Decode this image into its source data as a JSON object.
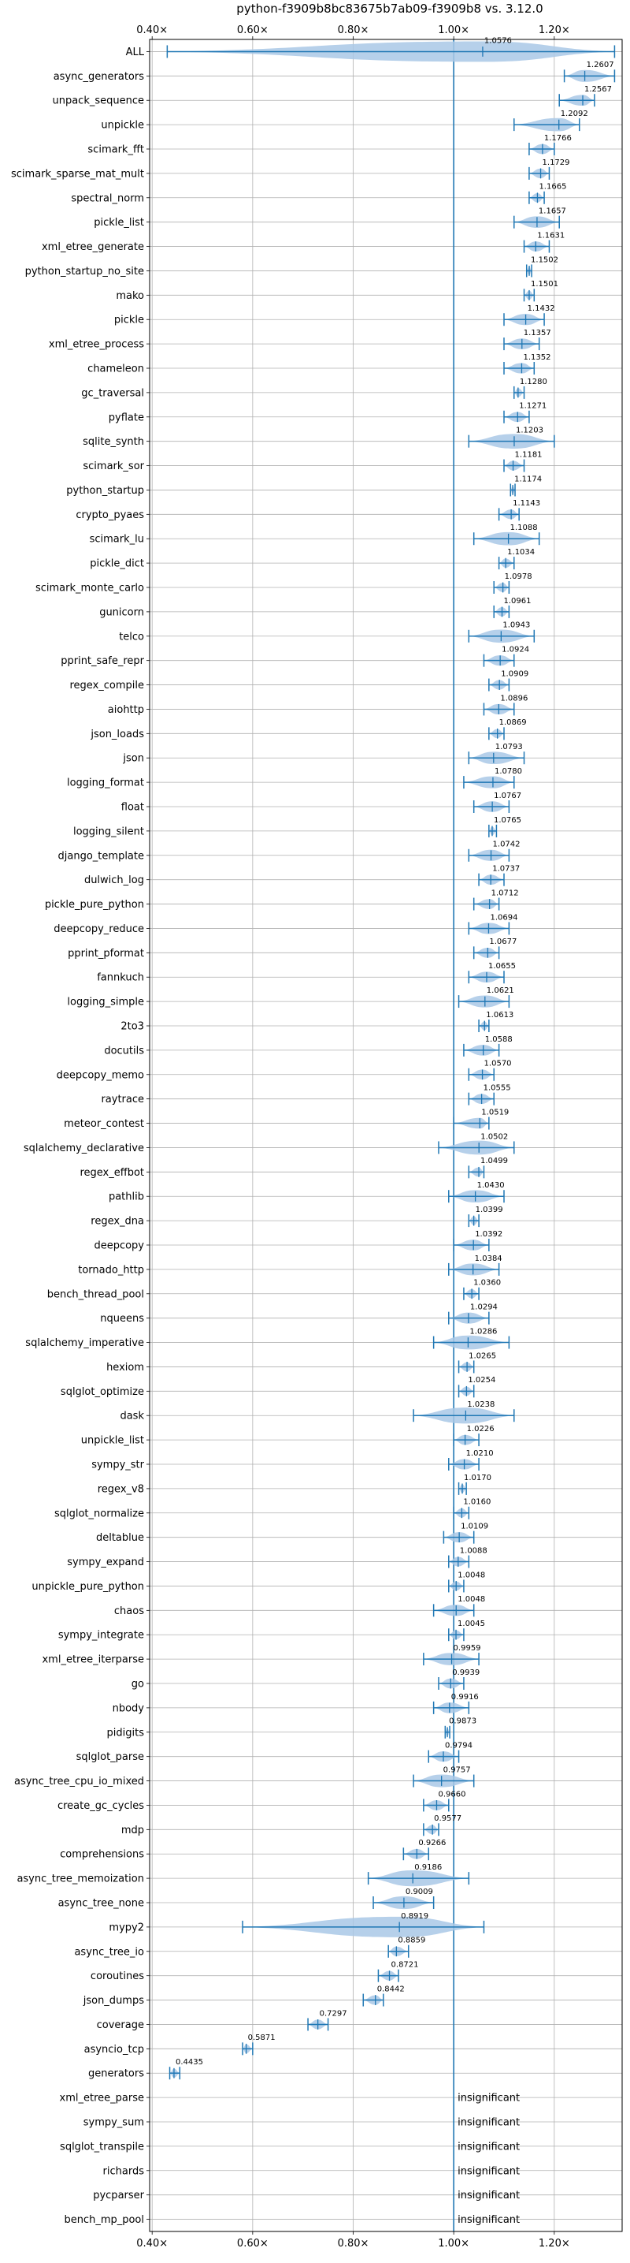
{
  "chart_data": {
    "type": "violin",
    "title": "python-f3909b8bc83675b7ab09-f3909b8 vs. 3.12.0",
    "xlabel": "",
    "ylabel": "",
    "xlim": [
      0.395,
      1.335
    ],
    "x_ticks": [
      0.4,
      0.6,
      0.8,
      1.0,
      1.2
    ],
    "x_tick_labels": [
      "0.40×",
      "0.60×",
      "0.80×",
      "1.00×",
      "1.20×"
    ],
    "reference_x": 1.0,
    "grid": true,
    "insignificant_label": "insignificant",
    "colors": {
      "violin": "#a9c8e6",
      "line": "#1f77b4"
    },
    "benchmarks": [
      {
        "name": "ALL",
        "value": 1.0576,
        "label": "1.0576",
        "min": 0.43,
        "max": 1.32
      },
      {
        "name": "async_generators",
        "value": 1.2607,
        "label": "1.2607",
        "min": 1.22,
        "max": 1.32
      },
      {
        "name": "unpack_sequence",
        "value": 1.2567,
        "label": "1.2567",
        "min": 1.21,
        "max": 1.28
      },
      {
        "name": "unpickle",
        "value": 1.2092,
        "label": "1.2092",
        "min": 1.12,
        "max": 1.25
      },
      {
        "name": "scimark_fft",
        "value": 1.1766,
        "label": "1.1766",
        "min": 1.15,
        "max": 1.2
      },
      {
        "name": "scimark_sparse_mat_mult",
        "value": 1.1729,
        "label": "1.1729",
        "min": 1.15,
        "max": 1.19
      },
      {
        "name": "spectral_norm",
        "value": 1.1665,
        "label": "1.1665",
        "min": 1.15,
        "max": 1.18
      },
      {
        "name": "pickle_list",
        "value": 1.1657,
        "label": "1.1657",
        "min": 1.12,
        "max": 1.21
      },
      {
        "name": "xml_etree_generate",
        "value": 1.1631,
        "label": "1.1631",
        "min": 1.14,
        "max": 1.19
      },
      {
        "name": "python_startup_no_site",
        "value": 1.1502,
        "label": "1.1502",
        "min": 1.145,
        "max": 1.155
      },
      {
        "name": "mako",
        "value": 1.1501,
        "label": "1.1501",
        "min": 1.14,
        "max": 1.16
      },
      {
        "name": "pickle",
        "value": 1.1432,
        "label": "1.1432",
        "min": 1.1,
        "max": 1.18
      },
      {
        "name": "xml_etree_process",
        "value": 1.1357,
        "label": "1.1357",
        "min": 1.1,
        "max": 1.17
      },
      {
        "name": "chameleon",
        "value": 1.1352,
        "label": "1.1352",
        "min": 1.1,
        "max": 1.16
      },
      {
        "name": "gc_traversal",
        "value": 1.128,
        "label": "1.1280",
        "min": 1.12,
        "max": 1.14
      },
      {
        "name": "pyflate",
        "value": 1.1271,
        "label": "1.1271",
        "min": 1.1,
        "max": 1.15
      },
      {
        "name": "sqlite_synth",
        "value": 1.1203,
        "label": "1.1203",
        "min": 1.03,
        "max": 1.2
      },
      {
        "name": "scimark_sor",
        "value": 1.1181,
        "label": "1.1181",
        "min": 1.1,
        "max": 1.14
      },
      {
        "name": "python_startup",
        "value": 1.1174,
        "label": "1.1174",
        "min": 1.113,
        "max": 1.122
      },
      {
        "name": "crypto_pyaes",
        "value": 1.1143,
        "label": "1.1143",
        "min": 1.09,
        "max": 1.13
      },
      {
        "name": "scimark_lu",
        "value": 1.1088,
        "label": "1.1088",
        "min": 1.04,
        "max": 1.17
      },
      {
        "name": "pickle_dict",
        "value": 1.1034,
        "label": "1.1034",
        "min": 1.09,
        "max": 1.12
      },
      {
        "name": "scimark_monte_carlo",
        "value": 1.0978,
        "label": "1.0978",
        "min": 1.08,
        "max": 1.11
      },
      {
        "name": "gunicorn",
        "value": 1.0961,
        "label": "1.0961",
        "min": 1.08,
        "max": 1.11
      },
      {
        "name": "telco",
        "value": 1.0943,
        "label": "1.0943",
        "min": 1.03,
        "max": 1.16
      },
      {
        "name": "pprint_safe_repr",
        "value": 1.0924,
        "label": "1.0924",
        "min": 1.06,
        "max": 1.12
      },
      {
        "name": "regex_compile",
        "value": 1.0909,
        "label": "1.0909",
        "min": 1.07,
        "max": 1.11
      },
      {
        "name": "aiohttp",
        "value": 1.0896,
        "label": "1.0896",
        "min": 1.06,
        "max": 1.12
      },
      {
        "name": "json_loads",
        "value": 1.0869,
        "label": "1.0869",
        "min": 1.07,
        "max": 1.1
      },
      {
        "name": "json",
        "value": 1.0793,
        "label": "1.0793",
        "min": 1.03,
        "max": 1.14
      },
      {
        "name": "logging_format",
        "value": 1.078,
        "label": "1.0780",
        "min": 1.02,
        "max": 1.12
      },
      {
        "name": "float",
        "value": 1.0767,
        "label": "1.0767",
        "min": 1.04,
        "max": 1.11
      },
      {
        "name": "logging_silent",
        "value": 1.0765,
        "label": "1.0765",
        "min": 1.07,
        "max": 1.085
      },
      {
        "name": "django_template",
        "value": 1.0742,
        "label": "1.0742",
        "min": 1.03,
        "max": 1.11
      },
      {
        "name": "dulwich_log",
        "value": 1.0737,
        "label": "1.0737",
        "min": 1.05,
        "max": 1.1
      },
      {
        "name": "pickle_pure_python",
        "value": 1.0712,
        "label": "1.0712",
        "min": 1.04,
        "max": 1.09
      },
      {
        "name": "deepcopy_reduce",
        "value": 1.0694,
        "label": "1.0694",
        "min": 1.03,
        "max": 1.11
      },
      {
        "name": "pprint_pformat",
        "value": 1.0677,
        "label": "1.0677",
        "min": 1.04,
        "max": 1.09
      },
      {
        "name": "fannkuch",
        "value": 1.0655,
        "label": "1.0655",
        "min": 1.03,
        "max": 1.1
      },
      {
        "name": "logging_simple",
        "value": 1.0621,
        "label": "1.0621",
        "min": 1.01,
        "max": 1.11
      },
      {
        "name": "2to3",
        "value": 1.0613,
        "label": "1.0613",
        "min": 1.05,
        "max": 1.07
      },
      {
        "name": "docutils",
        "value": 1.0588,
        "label": "1.0588",
        "min": 1.02,
        "max": 1.09
      },
      {
        "name": "deepcopy_memo",
        "value": 1.057,
        "label": "1.0570",
        "min": 1.03,
        "max": 1.08
      },
      {
        "name": "raytrace",
        "value": 1.0555,
        "label": "1.0555",
        "min": 1.03,
        "max": 1.08
      },
      {
        "name": "meteor_contest",
        "value": 1.0519,
        "label": "1.0519",
        "min": 1.0,
        "max": 1.07
      },
      {
        "name": "sqlalchemy_declarative",
        "value": 1.0502,
        "label": "1.0502",
        "min": 0.97,
        "max": 1.12
      },
      {
        "name": "regex_effbot",
        "value": 1.0499,
        "label": "1.0499",
        "min": 1.03,
        "max": 1.06
      },
      {
        "name": "pathlib",
        "value": 1.043,
        "label": "1.0430",
        "min": 0.99,
        "max": 1.1
      },
      {
        "name": "regex_dna",
        "value": 1.0399,
        "label": "1.0399",
        "min": 1.03,
        "max": 1.05
      },
      {
        "name": "deepcopy",
        "value": 1.0392,
        "label": "1.0392",
        "min": 1.0,
        "max": 1.07
      },
      {
        "name": "tornado_http",
        "value": 1.0384,
        "label": "1.0384",
        "min": 0.99,
        "max": 1.09
      },
      {
        "name": "bench_thread_pool",
        "value": 1.036,
        "label": "1.0360",
        "min": 1.02,
        "max": 1.05
      },
      {
        "name": "nqueens",
        "value": 1.0294,
        "label": "1.0294",
        "min": 0.99,
        "max": 1.07
      },
      {
        "name": "sqlalchemy_imperative",
        "value": 1.0286,
        "label": "1.0286",
        "min": 0.96,
        "max": 1.11
      },
      {
        "name": "hexiom",
        "value": 1.0265,
        "label": "1.0265",
        "min": 1.01,
        "max": 1.04
      },
      {
        "name": "sqlglot_optimize",
        "value": 1.0254,
        "label": "1.0254",
        "min": 1.01,
        "max": 1.04
      },
      {
        "name": "dask",
        "value": 1.0238,
        "label": "1.0238",
        "min": 0.92,
        "max": 1.12
      },
      {
        "name": "unpickle_list",
        "value": 1.0226,
        "label": "1.0226",
        "min": 1.0,
        "max": 1.05
      },
      {
        "name": "sympy_str",
        "value": 1.021,
        "label": "1.0210",
        "min": 0.99,
        "max": 1.05
      },
      {
        "name": "regex_v8",
        "value": 1.017,
        "label": "1.0170",
        "min": 1.01,
        "max": 1.025
      },
      {
        "name": "sqlglot_normalize",
        "value": 1.016,
        "label": "1.0160",
        "min": 1.0,
        "max": 1.03
      },
      {
        "name": "deltablue",
        "value": 1.0109,
        "label": "1.0109",
        "min": 0.98,
        "max": 1.04
      },
      {
        "name": "sympy_expand",
        "value": 1.0088,
        "label": "1.0088",
        "min": 0.99,
        "max": 1.03
      },
      {
        "name": "unpickle_pure_python",
        "value": 1.0048,
        "label": "1.0048",
        "min": 0.99,
        "max": 1.02
      },
      {
        "name": "chaos",
        "value": 1.0048,
        "label": "1.0048",
        "min": 0.96,
        "max": 1.04
      },
      {
        "name": "sympy_integrate",
        "value": 1.0045,
        "label": "1.0045",
        "min": 0.99,
        "max": 1.02
      },
      {
        "name": "xml_etree_iterparse",
        "value": 0.9959,
        "label": "0.9959",
        "min": 0.94,
        "max": 1.05
      },
      {
        "name": "go",
        "value": 0.9939,
        "label": "0.9939",
        "min": 0.97,
        "max": 1.02
      },
      {
        "name": "nbody",
        "value": 0.9916,
        "label": "0.9916",
        "min": 0.96,
        "max": 1.03
      },
      {
        "name": "pidigits",
        "value": 0.9873,
        "label": "0.9873",
        "min": 0.983,
        "max": 0.992
      },
      {
        "name": "sqlglot_parse",
        "value": 0.9794,
        "label": "0.9794",
        "min": 0.95,
        "max": 1.01
      },
      {
        "name": "async_tree_cpu_io_mixed",
        "value": 0.9757,
        "label": "0.9757",
        "min": 0.92,
        "max": 1.04
      },
      {
        "name": "create_gc_cycles",
        "value": 0.966,
        "label": "0.9660",
        "min": 0.94,
        "max": 0.99
      },
      {
        "name": "mdp",
        "value": 0.9577,
        "label": "0.9577",
        "min": 0.94,
        "max": 0.97
      },
      {
        "name": "comprehensions",
        "value": 0.9266,
        "label": "0.9266",
        "min": 0.9,
        "max": 0.95
      },
      {
        "name": "async_tree_memoization",
        "value": 0.9186,
        "label": "0.9186",
        "min": 0.83,
        "max": 1.03
      },
      {
        "name": "async_tree_none",
        "value": 0.9009,
        "label": "0.9009",
        "min": 0.84,
        "max": 0.96
      },
      {
        "name": "mypy2",
        "value": 0.8919,
        "label": "0.8919",
        "min": 0.58,
        "max": 1.06
      },
      {
        "name": "async_tree_io",
        "value": 0.8859,
        "label": "0.8859",
        "min": 0.87,
        "max": 0.91
      },
      {
        "name": "coroutines",
        "value": 0.8721,
        "label": "0.8721",
        "min": 0.85,
        "max": 0.89
      },
      {
        "name": "json_dumps",
        "value": 0.8442,
        "label": "0.8442",
        "min": 0.82,
        "max": 0.86
      },
      {
        "name": "coverage",
        "value": 0.7297,
        "label": "0.7297",
        "min": 0.71,
        "max": 0.75
      },
      {
        "name": "asyncio_tcp",
        "value": 0.5871,
        "label": "0.5871",
        "min": 0.58,
        "max": 0.6
      },
      {
        "name": "generators",
        "value": 0.4435,
        "label": "0.4435",
        "min": 0.435,
        "max": 0.455
      },
      {
        "name": "xml_etree_parse",
        "value": null,
        "label": "insignificant"
      },
      {
        "name": "sympy_sum",
        "value": null,
        "label": "insignificant"
      },
      {
        "name": "sqlglot_transpile",
        "value": null,
        "label": "insignificant"
      },
      {
        "name": "richards",
        "value": null,
        "label": "insignificant"
      },
      {
        "name": "pycparser",
        "value": null,
        "label": "insignificant"
      },
      {
        "name": "bench_mp_pool",
        "value": null,
        "label": "insignificant"
      }
    ]
  }
}
